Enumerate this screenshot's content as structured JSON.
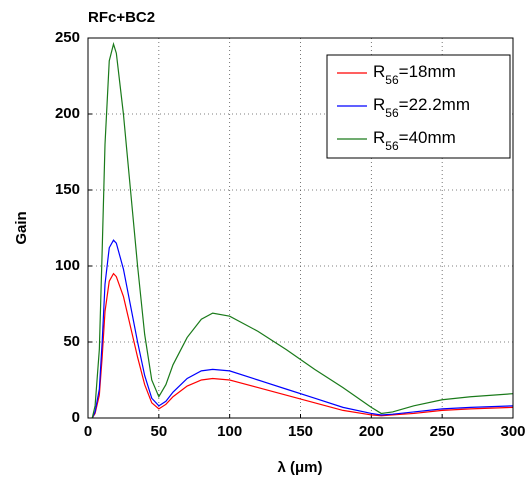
{
  "chart_data": {
    "type": "line",
    "title": "RFc+BC2",
    "x_label": "λ (μm)",
    "y_label": "Gain",
    "x": [
      3,
      5,
      8,
      10,
      12,
      15,
      18,
      20,
      25,
      30,
      35,
      40,
      45,
      50,
      55,
      60,
      70,
      80,
      88,
      100,
      120,
      140,
      160,
      180,
      200,
      207,
      215,
      230,
      250,
      270,
      300
    ],
    "series": [
      {
        "name": "R56=18mm",
        "color": "#ff0000",
        "values": [
          0,
          3,
          15,
          40,
          70,
          90,
          95,
          93,
          80,
          60,
          40,
          22,
          10,
          6,
          9,
          14,
          21,
          25,
          26,
          25,
          20,
          15,
          10,
          5,
          2,
          1.5,
          2,
          3,
          5,
          6,
          7
        ]
      },
      {
        "name": "R56=22.2mm",
        "color": "#0000ff",
        "values": [
          0,
          4,
          19,
          50,
          88,
          112,
          117,
          115,
          98,
          74,
          50,
          28,
          13,
          8,
          11,
          17,
          26,
          31,
          32,
          31,
          25,
          19,
          13,
          7,
          3,
          2,
          2.5,
          4,
          6,
          7,
          8
        ]
      },
      {
        "name": "R56=40mm",
        "color": "#1a7a1a",
        "values": [
          0,
          8,
          45,
          110,
          180,
          235,
          246,
          240,
          200,
          150,
          100,
          55,
          25,
          14,
          22,
          35,
          53,
          65,
          69,
          67,
          57,
          45,
          32,
          20,
          7,
          3,
          4,
          8,
          12,
          14,
          16
        ]
      }
    ],
    "xlim": [
      0,
      300
    ],
    "xticks": [
      0,
      50,
      100,
      150,
      200,
      250,
      300
    ],
    "ylim": [
      0,
      250
    ],
    "yticks": [
      0,
      50,
      100,
      150,
      200,
      250
    ],
    "grid": true,
    "legend": "upper right"
  }
}
